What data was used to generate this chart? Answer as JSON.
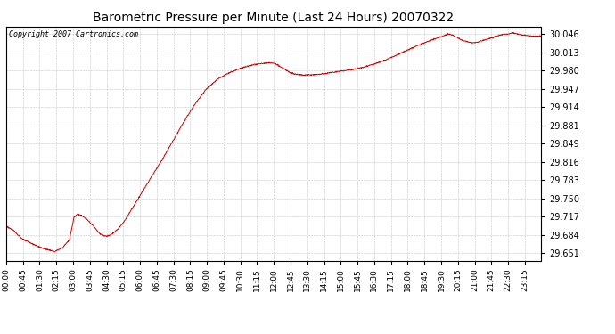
{
  "title": "Barometric Pressure per Minute (Last 24 Hours) 20070322",
  "copyright": "Copyright 2007 Cartronics.com",
  "line_color": "#cc0000",
  "background_color": "#ffffff",
  "plot_bg_color": "#ffffff",
  "grid_color": "#aaaaaa",
  "yticks": [
    29.651,
    29.684,
    29.717,
    29.75,
    29.783,
    29.816,
    29.849,
    29.881,
    29.914,
    29.947,
    29.98,
    30.013,
    30.046
  ],
  "ylim": [
    29.638,
    30.059
  ],
  "xtick_labels": [
    "00:00",
    "00:45",
    "01:30",
    "02:15",
    "03:00",
    "03:45",
    "04:30",
    "05:15",
    "06:00",
    "06:45",
    "07:30",
    "08:15",
    "09:00",
    "09:45",
    "10:30",
    "11:15",
    "12:00",
    "12:45",
    "13:30",
    "14:15",
    "15:00",
    "15:45",
    "16:30",
    "17:15",
    "18:00",
    "18:45",
    "19:30",
    "20:15",
    "21:00",
    "21:45",
    "22:30",
    "23:15"
  ],
  "keypoints": [
    [
      0,
      29.7
    ],
    [
      20,
      29.692
    ],
    [
      45,
      29.676
    ],
    [
      90,
      29.662
    ],
    [
      130,
      29.654
    ],
    [
      150,
      29.66
    ],
    [
      170,
      29.675
    ],
    [
      183,
      29.717
    ],
    [
      193,
      29.722
    ],
    [
      205,
      29.718
    ],
    [
      218,
      29.712
    ],
    [
      235,
      29.7
    ],
    [
      252,
      29.686
    ],
    [
      265,
      29.682
    ],
    [
      272,
      29.682
    ],
    [
      285,
      29.686
    ],
    [
      300,
      29.694
    ],
    [
      315,
      29.706
    ],
    [
      330,
      29.722
    ],
    [
      360,
      29.755
    ],
    [
      390,
      29.788
    ],
    [
      420,
      29.82
    ],
    [
      450,
      29.855
    ],
    [
      480,
      29.89
    ],
    [
      510,
      29.922
    ],
    [
      540,
      29.948
    ],
    [
      570,
      29.965
    ],
    [
      600,
      29.976
    ],
    [
      630,
      29.984
    ],
    [
      660,
      29.99
    ],
    [
      690,
      29.993
    ],
    [
      715,
      29.994
    ],
    [
      720,
      29.993
    ],
    [
      730,
      29.99
    ],
    [
      745,
      29.984
    ],
    [
      760,
      29.978
    ],
    [
      775,
      29.974
    ],
    [
      800,
      29.972
    ],
    [
      840,
      29.973
    ],
    [
      870,
      29.976
    ],
    [
      900,
      29.979
    ],
    [
      930,
      29.982
    ],
    [
      960,
      29.986
    ],
    [
      990,
      29.992
    ],
    [
      1020,
      29.999
    ],
    [
      1050,
      30.008
    ],
    [
      1080,
      30.017
    ],
    [
      1110,
      30.026
    ],
    [
      1140,
      30.034
    ],
    [
      1170,
      30.041
    ],
    [
      1188,
      30.046
    ],
    [
      1200,
      30.044
    ],
    [
      1212,
      30.04
    ],
    [
      1225,
      30.035
    ],
    [
      1240,
      30.032
    ],
    [
      1255,
      30.03
    ],
    [
      1268,
      30.031
    ],
    [
      1280,
      30.034
    ],
    [
      1300,
      30.038
    ],
    [
      1320,
      30.042
    ],
    [
      1335,
      30.045
    ],
    [
      1350,
      30.046
    ],
    [
      1362,
      30.048
    ],
    [
      1375,
      30.046
    ],
    [
      1390,
      30.044
    ],
    [
      1400,
      30.043
    ],
    [
      1415,
      30.042
    ],
    [
      1430,
      30.042
    ],
    [
      1439,
      30.042
    ]
  ]
}
